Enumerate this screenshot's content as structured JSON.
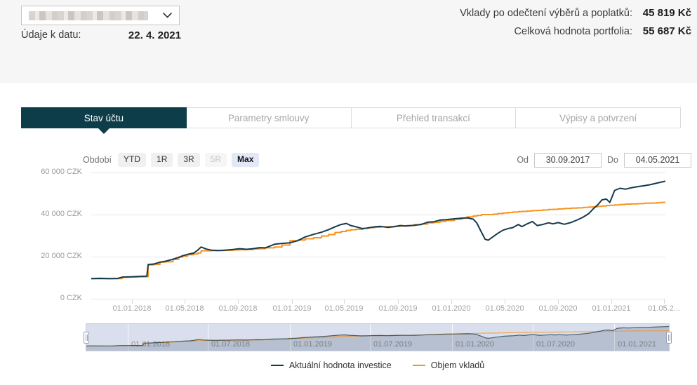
{
  "header": {
    "account_selector": {
      "icon": "chevron-down"
    },
    "data_date_label": "Údaje k datu:",
    "data_date_value": "22. 4. 2021",
    "summary": [
      {
        "label": "Vklady po odečtení výběrů a poplatků:",
        "value": "45 819 Kč"
      },
      {
        "label": "Celková hodnota portfolia:",
        "value": "55 687 Kč"
      }
    ]
  },
  "tabs": [
    {
      "label": "Stav účtu",
      "active": true
    },
    {
      "label": "Parametry smlouvy",
      "active": false
    },
    {
      "label": "Přehled transakcí",
      "active": false
    },
    {
      "label": "Výpisy a potvrzení",
      "active": false
    }
  ],
  "toolbar": {
    "period_label": "Období",
    "periods": [
      {
        "label": "YTD"
      },
      {
        "label": "1R"
      },
      {
        "label": "3R"
      },
      {
        "label": "5R",
        "disabled": true
      },
      {
        "label": "Max",
        "active": true
      }
    ],
    "from_label": "Od",
    "from_value": "30.09.2017",
    "to_label": "Do",
    "to_value": "04.05.2021"
  },
  "chart_data": {
    "type": "line",
    "title": "",
    "ylim": [
      0,
      60000
    ],
    "grid": true,
    "legend_position": "bottom",
    "yticks": [
      {
        "label": "0 CZK",
        "value": 0
      },
      {
        "label": "20 000 CZK",
        "value": 20000
      },
      {
        "label": "40 000 CZK",
        "value": 40000
      },
      {
        "label": "60 000 CZK",
        "value": 60000
      }
    ],
    "xticks": [
      {
        "label": "01.01.2018",
        "date": "2018-01-01"
      },
      {
        "label": "01.05.2018",
        "date": "2018-05-01"
      },
      {
        "label": "01.09.2018",
        "date": "2018-09-01"
      },
      {
        "label": "01.01.2019",
        "date": "2019-01-01"
      },
      {
        "label": "01.05.2019",
        "date": "2019-05-01"
      },
      {
        "label": "01.09.2019",
        "date": "2019-09-01"
      },
      {
        "label": "01.01.2020",
        "date": "2020-01-01"
      },
      {
        "label": "01.05.2020",
        "date": "2020-05-01"
      },
      {
        "label": "01.09.2020",
        "date": "2020-09-01"
      },
      {
        "label": "01.01.2021",
        "date": "2021-01-01"
      },
      {
        "label": "01.05.2...",
        "date": "2021-05-01"
      }
    ],
    "navigator": {
      "tick_labels": [
        {
          "label": "01.01.2018",
          "date": "2018-01-01"
        },
        {
          "label": "01.07.2018",
          "date": "2018-07-01"
        },
        {
          "label": "01.01.2019",
          "date": "2019-01-01"
        },
        {
          "label": "01.07.2019",
          "date": "2019-07-01"
        },
        {
          "label": "01.01.2020",
          "date": "2020-01-01"
        },
        {
          "label": "01.07.2020",
          "date": "2020-07-01"
        },
        {
          "label": "01.01.2021",
          "date": "2021-01-01"
        }
      ]
    },
    "dates": [
      "2017-09-30",
      "2017-10-20",
      "2017-11-10",
      "2017-11-30",
      "2017-12-10",
      "2017-12-28",
      "2018-01-15",
      "2018-02-04",
      "2018-02-07",
      "2018-02-20",
      "2018-03-06",
      "2018-03-20",
      "2018-04-05",
      "2018-04-18",
      "2018-04-27",
      "2018-05-08",
      "2018-05-22",
      "2018-06-01",
      "2018-06-08",
      "2018-06-20",
      "2018-07-02",
      "2018-07-18",
      "2018-08-02",
      "2018-08-20",
      "2018-09-04",
      "2018-09-20",
      "2018-10-05",
      "2018-10-20",
      "2018-11-02",
      "2018-11-23",
      "2018-12-10",
      "2018-12-28",
      "2019-01-15",
      "2019-02-01",
      "2019-02-20",
      "2019-03-10",
      "2019-03-26",
      "2019-04-10",
      "2019-04-24",
      "2019-05-06",
      "2019-05-16",
      "2019-05-28",
      "2019-06-12",
      "2019-06-26",
      "2019-07-10",
      "2019-07-24",
      "2019-08-08",
      "2019-08-22",
      "2019-09-06",
      "2019-09-20",
      "2019-10-08",
      "2019-10-24",
      "2019-11-08",
      "2019-11-22",
      "2019-12-06",
      "2019-12-20",
      "2020-01-08",
      "2020-01-24",
      "2020-02-06",
      "2020-02-20",
      "2020-02-28",
      "2020-03-10",
      "2020-03-18",
      "2020-03-25",
      "2020-04-06",
      "2020-04-16",
      "2020-04-28",
      "2020-05-10",
      "2020-05-20",
      "2020-06-02",
      "2020-06-10",
      "2020-06-22",
      "2020-07-04",
      "2020-07-15",
      "2020-07-28",
      "2020-08-10",
      "2020-08-20",
      "2020-09-01",
      "2020-09-15",
      "2020-10-01",
      "2020-10-15",
      "2020-10-28",
      "2020-11-10",
      "2020-11-20",
      "2020-12-01",
      "2020-12-10",
      "2020-12-20",
      "2020-12-28",
      "2021-01-08",
      "2021-01-20",
      "2021-02-02",
      "2021-02-16",
      "2021-03-02",
      "2021-03-16",
      "2021-04-01",
      "2021-04-15",
      "2021-04-26",
      "2021-05-04"
    ],
    "series": [
      {
        "name": "Aktuální hodnota investice",
        "color": "#163a4d",
        "step": false,
        "values": [
          9600,
          9700,
          9550,
          9650,
          10300,
          10450,
          10600,
          10750,
          16300,
          16500,
          17350,
          17900,
          18800,
          19700,
          20450,
          21100,
          21700,
          23200,
          24600,
          23600,
          23100,
          22900,
          23100,
          23400,
          23800,
          23500,
          23800,
          24300,
          24200,
          25900,
          26300,
          26600,
          27600,
          29400,
          30600,
          31600,
          32800,
          34200,
          35300,
          35800,
          34800,
          34200,
          33300,
          33700,
          34200,
          34400,
          33900,
          34200,
          34800,
          34600,
          34900,
          35300,
          36400,
          36600,
          37400,
          37600,
          38000,
          38300,
          38500,
          37800,
          36000,
          31500,
          28300,
          27800,
          29600,
          31100,
          32600,
          33400,
          33800,
          35300,
          34300,
          35600,
          36700,
          34800,
          35300,
          36100,
          35600,
          36200,
          35400,
          36300,
          37500,
          38800,
          40500,
          42700,
          44800,
          47000,
          47400,
          45800,
          51500,
          52500,
          52100,
          52800,
          53300,
          53700,
          54300,
          55000,
          55500,
          55900
        ]
      },
      {
        "name": "Objem vkladů",
        "color": "#f7941e",
        "step": true,
        "values": [
          9500,
          9500,
          9500,
          9600,
          10200,
          10300,
          10400,
          10500,
          16100,
          16300,
          17400,
          17600,
          18700,
          19800,
          20300,
          20900,
          21300,
          21800,
          22800,
          22800,
          22850,
          22900,
          23000,
          23200,
          23300,
          23400,
          23700,
          23800,
          24200,
          24600,
          25500,
          27600,
          27900,
          28500,
          29000,
          29800,
          30500,
          31500,
          32000,
          32500,
          32800,
          33000,
          33500,
          33800,
          34000,
          34200,
          34300,
          34400,
          34600,
          34800,
          35200,
          35500,
          36100,
          36300,
          36800,
          37200,
          37800,
          38200,
          38900,
          39300,
          39600,
          40000,
          40000,
          40000,
          40200,
          40500,
          40800,
          41000,
          41200,
          41400,
          41500,
          41700,
          41900,
          42000,
          42200,
          42400,
          42500,
          42700,
          42900,
          43100,
          43200,
          43400,
          43600,
          43700,
          43900,
          44100,
          44300,
          44400,
          44600,
          44800,
          45000,
          45100,
          45200,
          45400,
          45500,
          45700,
          45800,
          45819
        ]
      }
    ]
  }
}
